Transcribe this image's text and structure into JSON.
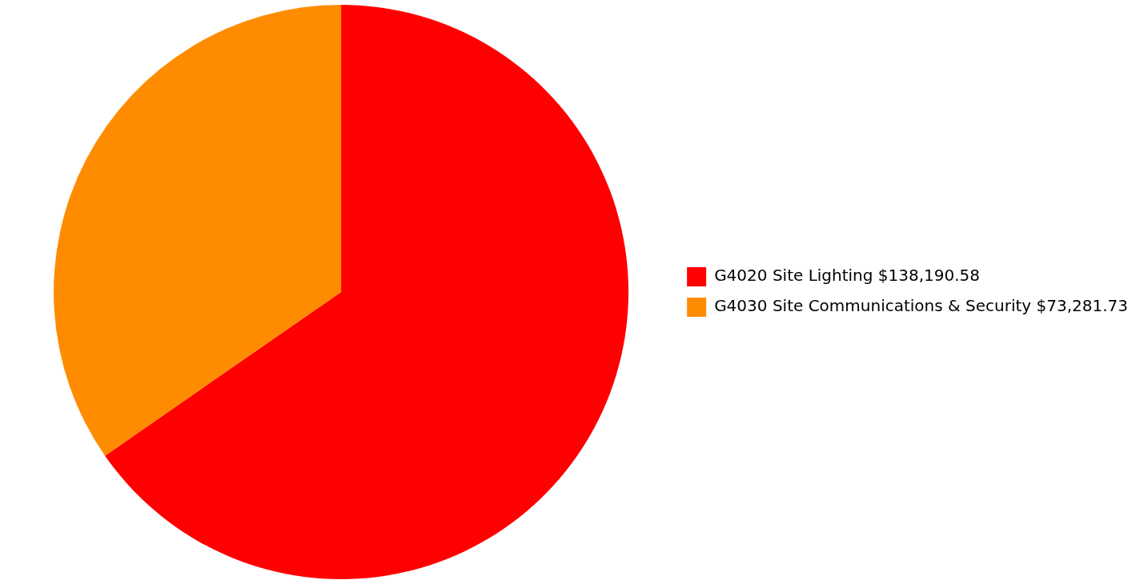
{
  "chart_data": {
    "type": "pie",
    "categories": [
      "G4020 Site Lighting",
      "G4030 Site Communications & Security"
    ],
    "values": [
      138190.58,
      73281.73
    ],
    "value_labels": [
      "$138,190.58",
      "$73,281.73"
    ],
    "colors": [
      "#ff0000",
      "#ff8c00"
    ],
    "legend": "right"
  }
}
